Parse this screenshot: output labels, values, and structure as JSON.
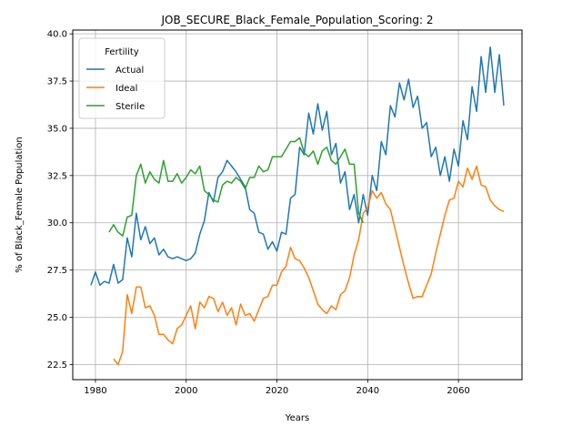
{
  "chart_data": {
    "type": "line",
    "title": "JOB_SECURE_Black_Female_Population_Scoring: 2",
    "xlabel": "Years",
    "ylabel": "% of Black_Female Population",
    "xlim": [
      1975,
      2074
    ],
    "ylim": [
      21.7,
      40.2
    ],
    "xticks": [
      1980,
      2000,
      2020,
      2040,
      2060
    ],
    "xtick_labels": [
      "1980",
      "2000",
      "2020",
      "2040",
      "2060"
    ],
    "yticks": [
      22.5,
      25.0,
      27.5,
      30.0,
      32.5,
      35.0,
      37.5,
      40.0
    ],
    "ytick_labels": [
      "22.5",
      "25.0",
      "27.5",
      "30.0",
      "32.5",
      "35.0",
      "37.5",
      "40.0"
    ],
    "grid": true,
    "legend": {
      "title": "Fertility",
      "placement": "top-left"
    },
    "series": [
      {
        "name": "Actual",
        "color": "#1f77b4",
        "x": [
          1979,
          1980,
          1981,
          1982,
          1983,
          1984,
          1985,
          1986,
          1987,
          1988,
          1989,
          1990,
          1991,
          1992,
          1993,
          1994,
          1995,
          1996,
          1997,
          1998,
          1999,
          2000,
          2001,
          2002,
          2003,
          2004,
          2005,
          2006,
          2007,
          2008,
          2009,
          2010,
          2011,
          2012,
          2013,
          2014,
          2015,
          2016,
          2017,
          2018,
          2019,
          2020,
          2021,
          2022,
          2023,
          2024,
          2025,
          2026,
          2027,
          2028,
          2029,
          2030,
          2031,
          2032,
          2033,
          2034,
          2035,
          2036,
          2037,
          2038,
          2039,
          2040,
          2041,
          2042,
          2043,
          2044,
          2045,
          2046,
          2047,
          2048,
          2049,
          2050,
          2051,
          2052,
          2053,
          2054,
          2055,
          2056,
          2057,
          2058,
          2059,
          2060,
          2061,
          2062,
          2063,
          2064,
          2065,
          2066,
          2067,
          2068,
          2069,
          2070
        ],
        "y": [
          26.7,
          27.4,
          26.7,
          26.9,
          26.8,
          27.8,
          26.8,
          27.0,
          29.2,
          28.2,
          30.5,
          29.1,
          29.8,
          28.9,
          29.2,
          28.3,
          28.6,
          28.2,
          28.1,
          28.2,
          28.1,
          28.0,
          28.1,
          28.4,
          29.4,
          30.1,
          31.6,
          31.1,
          32.4,
          32.7,
          33.3,
          33.0,
          32.7,
          32.3,
          31.9,
          30.7,
          30.5,
          29.5,
          29.4,
          28.6,
          29.0,
          28.5,
          29.5,
          29.4,
          31.3,
          31.5,
          34.0,
          33.6,
          35.8,
          34.7,
          36.3,
          34.9,
          35.9,
          33.6,
          34.2,
          32.1,
          32.7,
          30.7,
          31.5,
          30.0,
          31.5,
          30.4,
          32.5,
          31.7,
          34.3,
          33.6,
          36.2,
          35.6,
          37.4,
          36.5,
          37.6,
          36.1,
          36.7,
          35.0,
          35.3,
          33.5,
          34.0,
          32.5,
          33.5,
          32.2,
          33.9,
          33.0,
          35.4,
          34.4,
          37.2,
          35.9,
          38.8,
          36.9,
          39.3,
          36.9,
          38.9,
          36.2
        ]
      },
      {
        "name": "Ideal",
        "color": "#ff7f0e",
        "x": [
          1984,
          1985,
          1986,
          1987,
          1988,
          1989,
          1990,
          1991,
          1992,
          1993,
          1994,
          1995,
          1996,
          1997,
          1998,
          1999,
          2000,
          2001,
          2002,
          2003,
          2004,
          2005,
          2006,
          2007,
          2008,
          2009,
          2010,
          2011,
          2012,
          2013,
          2014,
          2015,
          2016,
          2017,
          2018,
          2019,
          2020,
          2021,
          2022,
          2023,
          2024,
          2025,
          2026,
          2027,
          2028,
          2029,
          2030,
          2031,
          2032,
          2033,
          2034,
          2035,
          2036,
          2037,
          2038,
          2039,
          2040,
          2041,
          2042,
          2043,
          2044,
          2045,
          2046,
          2047,
          2048,
          2049,
          2050,
          2051,
          2052,
          2053,
          2054,
          2055,
          2056,
          2057,
          2058,
          2059,
          2060,
          2061,
          2062,
          2063,
          2064,
          2065,
          2066,
          2067,
          2068,
          2069,
          2070
        ],
        "y": [
          22.8,
          22.5,
          23.2,
          26.2,
          25.2,
          26.6,
          26.6,
          25.5,
          25.6,
          25.1,
          24.1,
          24.1,
          23.8,
          23.6,
          24.4,
          24.6,
          25.1,
          25.6,
          24.4,
          25.8,
          25.5,
          26.1,
          26.0,
          25.3,
          25.8,
          25.1,
          25.5,
          24.6,
          25.7,
          25.1,
          25.2,
          24.8,
          25.4,
          26.0,
          26.1,
          26.7,
          26.7,
          27.4,
          27.7,
          28.7,
          28.1,
          28.0,
          27.6,
          27.1,
          26.4,
          25.7,
          25.4,
          25.2,
          25.6,
          25.4,
          26.2,
          26.4,
          27.1,
          28.3,
          29.1,
          30.5,
          30.8,
          31.7,
          31.3,
          31.6,
          31.0,
          30.7,
          29.7,
          28.7,
          27.7,
          26.8,
          26.0,
          26.1,
          26.1,
          26.7,
          27.3,
          28.4,
          29.4,
          30.4,
          31.2,
          31.3,
          32.2,
          31.9,
          32.9,
          32.3,
          33.0,
          32.0,
          31.9,
          31.2,
          30.9,
          30.7,
          30.6
        ]
      },
      {
        "name": "Sterile",
        "color": "#2ca02c",
        "x": [
          1983,
          1984,
          1985,
          1986,
          1987,
          1988,
          1989,
          1990,
          1991,
          1992,
          1993,
          1994,
          1995,
          1996,
          1997,
          1998,
          1999,
          2000,
          2001,
          2002,
          2003,
          2004,
          2005,
          2006,
          2007,
          2008,
          2009,
          2010,
          2011,
          2012,
          2013,
          2014,
          2015,
          2016,
          2017,
          2018,
          2019,
          2020,
          2021,
          2022,
          2023,
          2024,
          2025,
          2026,
          2027,
          2028,
          2029,
          2030,
          2031,
          2032,
          2033,
          2034,
          2035,
          2036,
          2037,
          2038,
          2039
        ],
        "y": [
          29.5,
          29.9,
          29.5,
          29.3,
          30.3,
          30.4,
          32.5,
          33.1,
          32.1,
          32.7,
          32.3,
          32.1,
          33.3,
          32.2,
          32.2,
          32.6,
          32.1,
          32.4,
          32.8,
          32.6,
          33.0,
          31.7,
          31.5,
          31.2,
          31.1,
          32.0,
          32.2,
          32.1,
          32.4,
          32.2,
          31.8,
          32.4,
          32.4,
          33.0,
          32.7,
          32.8,
          33.5,
          33.5,
          33.5,
          33.9,
          34.3,
          34.3,
          34.5,
          33.7,
          33.5,
          33.8,
          33.1,
          33.8,
          34.0,
          33.3,
          33.1,
          33.5,
          33.9,
          33.1,
          33.1,
          30.5,
          30.0
        ]
      }
    ]
  }
}
